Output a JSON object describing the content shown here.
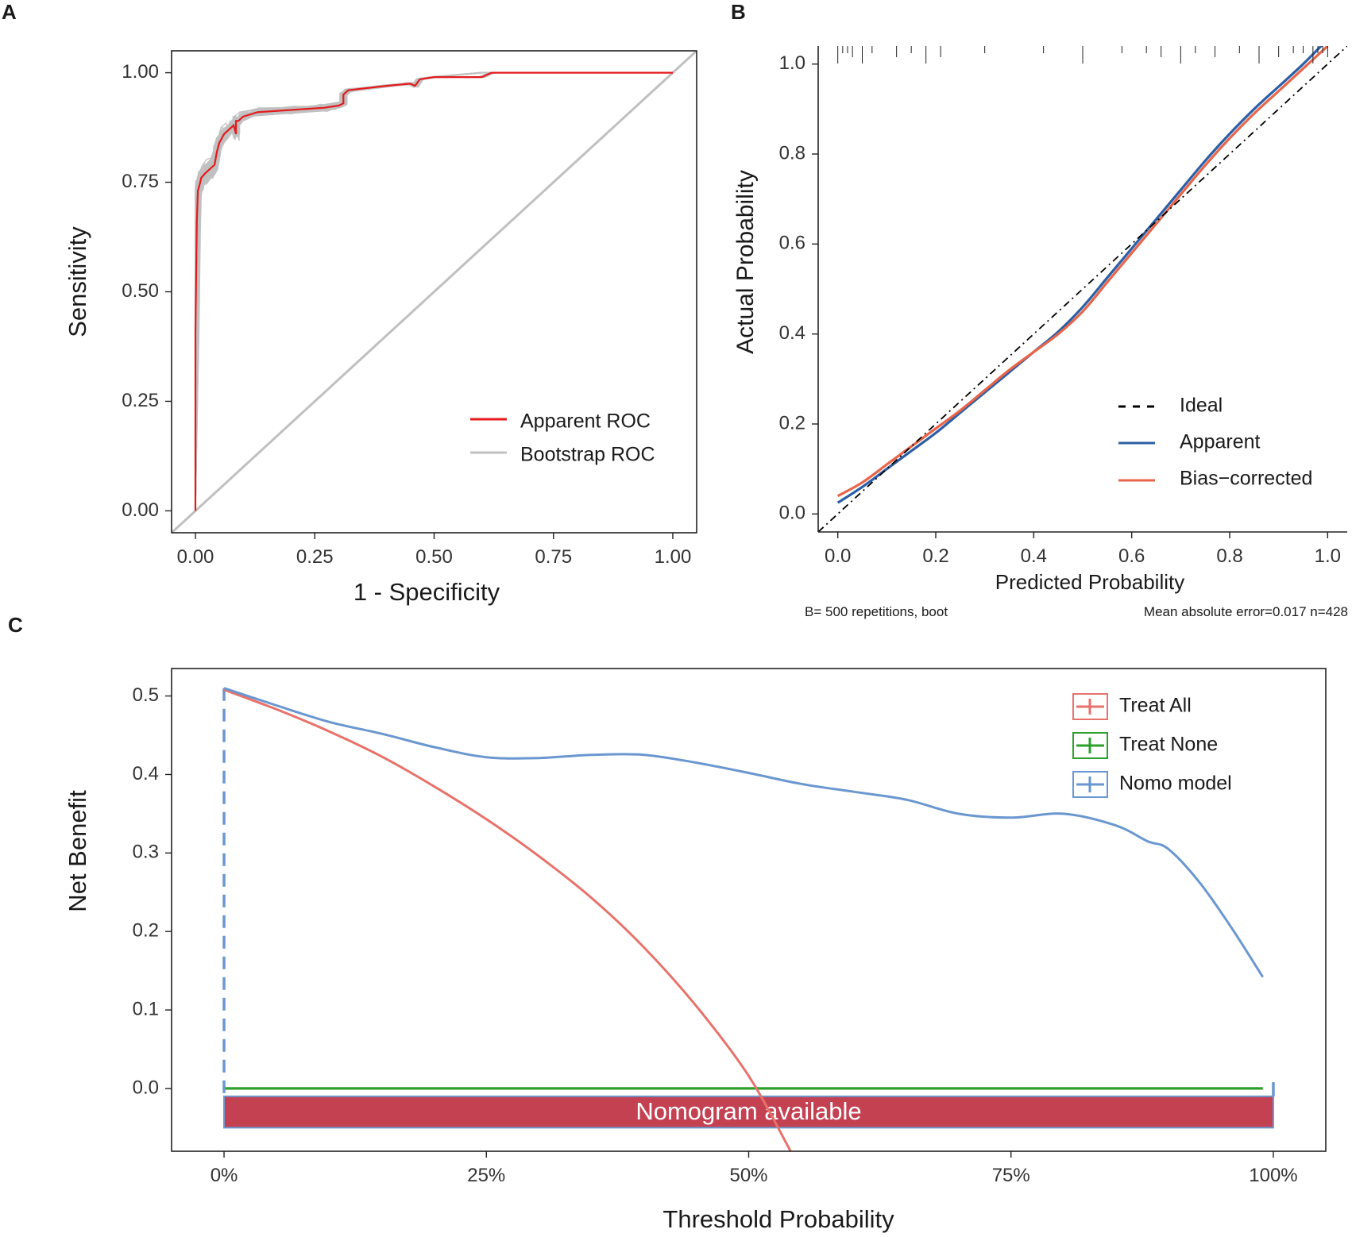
{
  "chart_data": [
    {
      "panel": "A",
      "type": "line",
      "xlabel": "1 - Specificity",
      "ylabel": "Sensitivity",
      "xlim": [
        -0.05,
        1.05
      ],
      "ylim": [
        -0.05,
        1.05
      ],
      "xticks": [
        "0.00",
        "0.25",
        "0.50",
        "0.75",
        "1.00"
      ],
      "yticks": [
        "0.00",
        "0.25",
        "0.50",
        "0.75",
        "1.00"
      ],
      "legend_position": "bottom-right",
      "series": [
        {
          "name": "Apparent ROC",
          "color": "#e41a1c",
          "x": [
            0.0,
            0.0,
            0.003,
            0.005,
            0.01,
            0.012,
            0.02,
            0.03,
            0.04,
            0.045,
            0.05,
            0.06,
            0.07,
            0.08,
            0.085,
            0.085,
            0.09,
            0.1,
            0.13,
            0.2,
            0.27,
            0.3,
            0.31,
            0.31,
            0.32,
            0.4,
            0.45,
            0.46,
            0.47,
            0.5,
            0.6,
            0.62,
            0.7,
            0.8,
            1.0
          ],
          "y": [
            0.0,
            0.41,
            0.66,
            0.73,
            0.75,
            0.76,
            0.77,
            0.78,
            0.79,
            0.82,
            0.84,
            0.86,
            0.87,
            0.88,
            0.86,
            0.89,
            0.89,
            0.9,
            0.91,
            0.915,
            0.92,
            0.925,
            0.93,
            0.95,
            0.96,
            0.97,
            0.975,
            0.97,
            0.985,
            0.99,
            0.99,
            1.0,
            1.0,
            1.0,
            1.0
          ]
        },
        {
          "name": "Bootstrap ROC",
          "color": "#c0c0c0",
          "curves": 500
        },
        {
          "name": "Reference",
          "color": "#c0c0c0",
          "x": [
            -0.05,
            1.05
          ],
          "y": [
            -0.05,
            1.05
          ]
        }
      ],
      "legend": [
        "Apparent ROC",
        "Bootstrap ROC"
      ]
    },
    {
      "panel": "B",
      "type": "line",
      "xlabel": "Predicted Probability",
      "ylabel": "Actual Probability",
      "xlim": [
        -0.04,
        1.04
      ],
      "ylim": [
        -0.04,
        1.04
      ],
      "xticks": [
        "0.0",
        "0.2",
        "0.4",
        "0.6",
        "0.8",
        "1.0"
      ],
      "yticks": [
        "0.0",
        "0.2",
        "0.4",
        "0.6",
        "0.8",
        "1.0"
      ],
      "legend_position": "bottom-right",
      "series": [
        {
          "name": "Ideal",
          "color": "#000000",
          "style": "dashed",
          "x": [
            -0.04,
            1.04
          ],
          "y": [
            -0.04,
            1.04
          ]
        },
        {
          "name": "Apparent",
          "color": "#2b5fa6",
          "x": [
            0.0,
            0.05,
            0.1,
            0.15,
            0.2,
            0.25,
            0.3,
            0.35,
            0.4,
            0.45,
            0.5,
            0.55,
            0.6,
            0.65,
            0.7,
            0.75,
            0.8,
            0.85,
            0.9,
            0.95,
            1.0
          ],
          "y": [
            0.025,
            0.06,
            0.1,
            0.14,
            0.18,
            0.225,
            0.27,
            0.315,
            0.36,
            0.405,
            0.46,
            0.525,
            0.59,
            0.655,
            0.72,
            0.785,
            0.845,
            0.9,
            0.95,
            1.0,
            1.055
          ]
        },
        {
          "name": "Bias-corrected",
          "color": "#e8654a",
          "x": [
            0.0,
            0.05,
            0.1,
            0.15,
            0.2,
            0.25,
            0.3,
            0.35,
            0.4,
            0.45,
            0.5,
            0.55,
            0.6,
            0.65,
            0.7,
            0.75,
            0.8,
            0.85,
            0.9,
            0.95,
            1.0
          ],
          "y": [
            0.04,
            0.07,
            0.11,
            0.15,
            0.19,
            0.23,
            0.275,
            0.32,
            0.36,
            0.4,
            0.45,
            0.515,
            0.58,
            0.645,
            0.71,
            0.775,
            0.835,
            0.89,
            0.94,
            0.99,
            1.04
          ]
        }
      ],
      "rug_x": [
        0.0,
        0.01,
        0.02,
        0.03,
        0.05,
        0.07,
        0.12,
        0.15,
        0.18,
        0.21,
        0.3,
        0.42,
        0.5,
        0.58,
        0.63,
        0.66,
        0.7,
        0.73,
        0.77,
        0.82,
        0.86,
        0.9,
        0.93,
        0.95,
        0.97,
        0.98,
        0.99,
        1.0
      ],
      "legend": [
        "Ideal",
        "Apparent",
        "Bias−corrected"
      ],
      "notes": {
        "left": "B= 500 repetitions, boot",
        "right": "Mean absolute error=0.017 n=428"
      }
    },
    {
      "panel": "C",
      "type": "line",
      "xlabel": "Threshold Probability",
      "ylabel": "Net Benefit",
      "xlim": [
        -0.05,
        1.05
      ],
      "ylim": [
        -0.08,
        0.535
      ],
      "xticks": [
        "0%",
        "25%",
        "50%",
        "75%",
        "100%"
      ],
      "yticks": [
        "0.0",
        "0.1",
        "0.2",
        "0.3",
        "0.4",
        "0.5"
      ],
      "legend_position": "top-right",
      "series": [
        {
          "name": "Treat All",
          "color": "#e8726a",
          "x": [
            0.0,
            0.05,
            0.1,
            0.15,
            0.2,
            0.25,
            0.3,
            0.35,
            0.4,
            0.45,
            0.5,
            0.54
          ],
          "y": [
            0.508,
            0.483,
            0.455,
            0.423,
            0.385,
            0.343,
            0.296,
            0.243,
            0.18,
            0.105,
            0.016,
            -0.08
          ]
        },
        {
          "name": "Treat None",
          "color": "#2ca02c",
          "x": [
            0.0,
            0.99
          ],
          "y": [
            0.0,
            0.0
          ]
        },
        {
          "name": "Nomo model",
          "color": "#6a97d0",
          "x": [
            0.0,
            0.05,
            0.1,
            0.15,
            0.2,
            0.25,
            0.3,
            0.35,
            0.4,
            0.45,
            0.5,
            0.55,
            0.6,
            0.65,
            0.7,
            0.75,
            0.8,
            0.85,
            0.88,
            0.9,
            0.93,
            0.96,
            0.99
          ],
          "y": [
            0.51,
            0.488,
            0.467,
            0.452,
            0.435,
            0.422,
            0.421,
            0.425,
            0.425,
            0.415,
            0.402,
            0.388,
            0.378,
            0.368,
            0.35,
            0.345,
            0.35,
            0.335,
            0.315,
            0.305,
            0.262,
            0.205,
            0.142
          ]
        }
      ],
      "legend": [
        "Treat All",
        "Treat None",
        "Nomo model"
      ],
      "annotation": {
        "text": "Nomogram available",
        "x_range": [
          0.0,
          1.0
        ],
        "y_range": [
          -0.05,
          -0.01
        ],
        "color": "#c44152",
        "marker_line_color": "#6a97d0"
      }
    }
  ],
  "panel_labels": [
    "A",
    "B",
    "C"
  ]
}
